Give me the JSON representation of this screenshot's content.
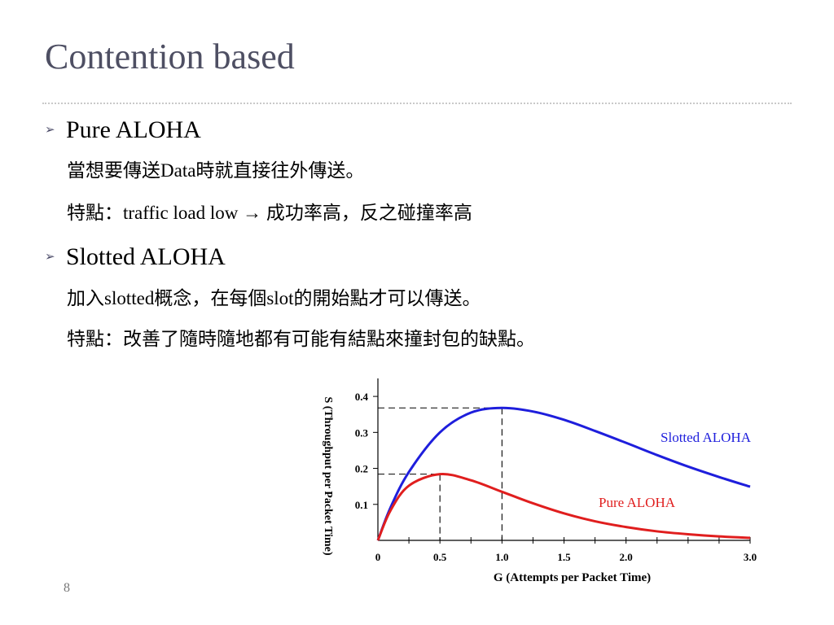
{
  "slide": {
    "title": "Contention based",
    "page_number": "8"
  },
  "content": {
    "bullet1": "Pure ALOHA",
    "bullet1_line1": "當想要傳送Data時就直接往外傳送。",
    "bullet1_line2": "特點：traffic load low → 成功率高，反之碰撞率高",
    "bullet2": "Slotted ALOHA",
    "bullet2_line1": "加入slotted概念，在每個slot的開始點才可以傳送。",
    "bullet2_line2": "特點：改善了隨時隨地都有可能有結點來撞封包的缺點。"
  },
  "icons": {
    "bullet": "arrowhead-bullet-icon"
  },
  "colors": {
    "title": "#4e4f63",
    "slotted": "#1e1edc",
    "pure": "#e01e1e"
  },
  "chart_data": {
    "type": "line",
    "xlabel": "G (Attempts per Packet Time)",
    "ylabel": "S (Throughput per Packet Time)",
    "xlim": [
      0,
      3.0
    ],
    "ylim": [
      0,
      0.4
    ],
    "x_ticks": [
      0,
      0.5,
      1.0,
      1.5,
      2.0,
      3.0
    ],
    "x_tick_labels": [
      "0",
      "0.5",
      "1.0",
      "1.5",
      "2.0",
      "3.0"
    ],
    "y_ticks": [
      0.1,
      0.2,
      0.3,
      0.4
    ],
    "y_tick_labels": [
      "0.1",
      "0.2",
      "0.3",
      "0.4"
    ],
    "series": [
      {
        "name": "Slotted ALOHA",
        "x": [
          0,
          0.1,
          0.25,
          0.5,
          0.75,
          1.0,
          1.25,
          1.5,
          1.75,
          2.0,
          2.25,
          2.5,
          2.75,
          3.0
        ],
        "y": [
          0,
          0.09,
          0.19,
          0.3,
          0.355,
          0.368,
          0.358,
          0.335,
          0.304,
          0.271,
          0.237,
          0.205,
          0.176,
          0.149
        ]
      },
      {
        "name": "Pure ALOHA",
        "x": [
          0,
          0.1,
          0.25,
          0.5,
          0.75,
          1.0,
          1.25,
          1.5,
          1.75,
          2.0,
          2.25,
          2.5,
          2.75,
          3.0
        ],
        "y": [
          0,
          0.082,
          0.152,
          0.184,
          0.167,
          0.135,
          0.103,
          0.075,
          0.053,
          0.037,
          0.025,
          0.017,
          0.011,
          0.007
        ]
      }
    ],
    "reference_lines": [
      {
        "x": 0.5,
        "y": 0.184
      },
      {
        "x": 1.0,
        "y": 0.368
      }
    ],
    "grid": false
  }
}
